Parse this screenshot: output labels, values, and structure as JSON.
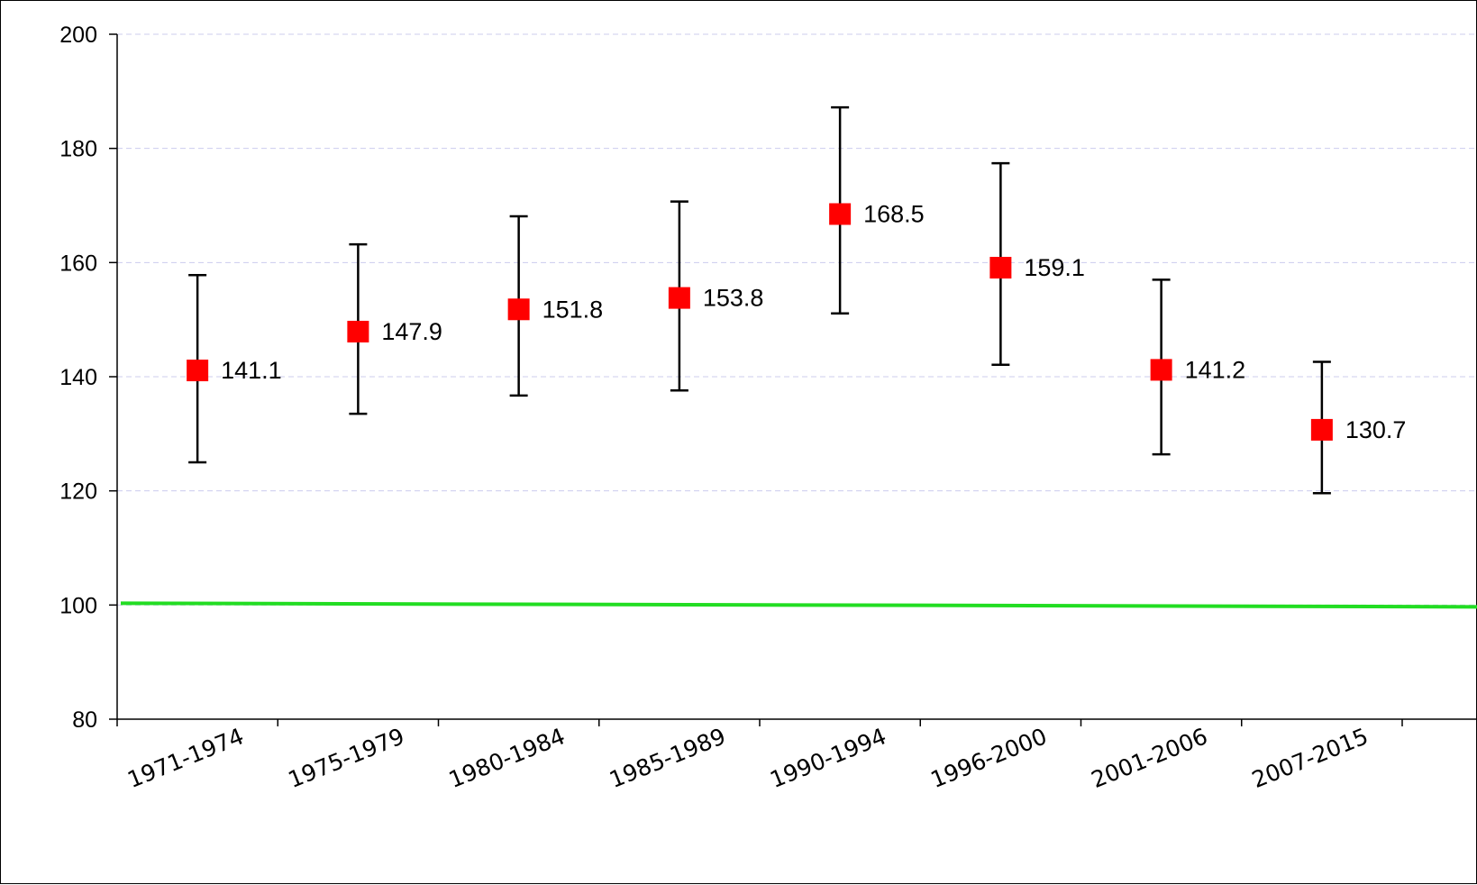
{
  "chart_data": {
    "type": "scatter",
    "title": "",
    "xlabel": "",
    "ylabel": "",
    "ylim": [
      80,
      200
    ],
    "yticks": [
      80,
      100,
      120,
      140,
      160,
      180,
      200
    ],
    "grid": true,
    "categories": [
      "1971-1974",
      "1975-1979",
      "1980-1984",
      "1985-1989",
      "1990-1994",
      "1996-2000",
      "2001-2006",
      "2007-2015"
    ],
    "series": [
      {
        "values": [
          141.1,
          147.9,
          151.8,
          153.8,
          168.5,
          159.1,
          141.2,
          130.7
        ],
        "error_low": [
          125.0,
          133.5,
          136.7,
          137.6,
          151.1,
          142.1,
          126.4,
          119.6
        ],
        "error_high": [
          157.8,
          163.2,
          168.1,
          170.7,
          187.2,
          177.4,
          157.0,
          142.6
        ],
        "data_labels": [
          "141.1",
          "147.9",
          "151.8",
          "153.8",
          "168.5",
          "159.1",
          "141.2",
          "130.7"
        ],
        "color": "#ff0000"
      }
    ],
    "reference_line": {
      "value": 100,
      "color": "#22dd22"
    },
    "colors": {
      "marker": "#ff0000",
      "error_bar": "#000000",
      "grid": "#ccccee",
      "reference": "#22dd22"
    }
  }
}
